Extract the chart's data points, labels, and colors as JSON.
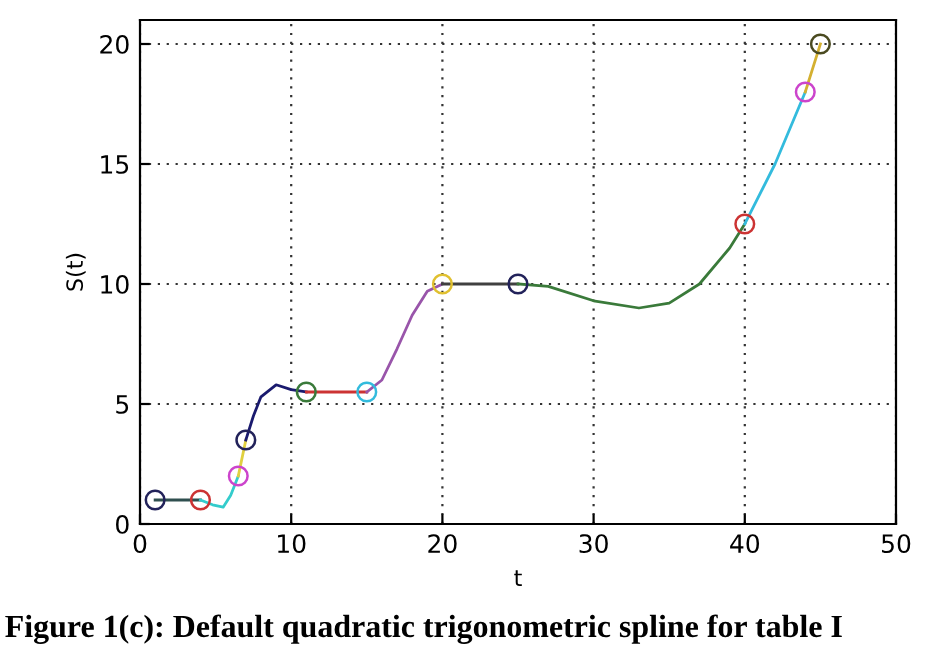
{
  "chart_data": {
    "type": "line",
    "title": "Figure 1(c): Default quadratic trigonometric spline for table I",
    "xlabel": "t",
    "ylabel": "S(t)",
    "xlim": [
      0,
      50
    ],
    "ylim": [
      0,
      21
    ],
    "xticks": [
      0,
      10,
      20,
      30,
      40,
      50
    ],
    "yticks": [
      0,
      5,
      10,
      15,
      20
    ],
    "grid": true,
    "line_style": "solid",
    "marker": "none",
    "series": [
      {
        "color": "#2f4f4f",
        "x": [
          1,
          4
        ],
        "values": [
          1,
          1
        ]
      },
      {
        "color": "#33cccc",
        "x": [
          4,
          4.8,
          5.5,
          6,
          6.5
        ],
        "values": [
          1,
          0.8,
          0.7,
          1.2,
          2
        ]
      },
      {
        "color": "#e0d040",
        "x": [
          6.5,
          7
        ],
        "values": [
          2,
          3.5
        ]
      },
      {
        "color": "#1a1a6e",
        "x": [
          7,
          7.5,
          8,
          9,
          10,
          11
        ],
        "values": [
          3.5,
          4.5,
          5.3,
          5.8,
          5.6,
          5.5
        ]
      },
      {
        "color": "#cc3333",
        "x": [
          11,
          15
        ],
        "values": [
          5.5,
          5.5
        ]
      },
      {
        "color": "#9955aa",
        "x": [
          15,
          16,
          17,
          18,
          19,
          20
        ],
        "values": [
          5.5,
          6,
          7.3,
          8.7,
          9.7,
          10
        ]
      },
      {
        "color": "#404040",
        "x": [
          20,
          25
        ],
        "values": [
          10,
          10
        ]
      },
      {
        "color": "#3a7a3a",
        "x": [
          25,
          27,
          30,
          33,
          35,
          37,
          39,
          40
        ],
        "values": [
          10,
          9.9,
          9.3,
          9,
          9.2,
          10,
          11.5,
          12.5
        ]
      },
      {
        "color": "#33bbdd",
        "x": [
          40,
          42,
          44
        ],
        "values": [
          12.5,
          15,
          18
        ]
      },
      {
        "color": "#d4b030",
        "x": [
          44,
          45
        ],
        "values": [
          18,
          20
        ]
      },
      {
        "type": "scatter",
        "marker": "circle",
        "x": [
          1,
          4,
          6.5,
          7,
          11,
          15,
          20,
          25,
          40,
          44,
          45
        ],
        "values": [
          1,
          1,
          2,
          3.5,
          5.5,
          5.5,
          10,
          10,
          12.5,
          18,
          20
        ],
        "colors": [
          "#22225a",
          "#cc3333",
          "#cc44cc",
          "#22225a",
          "#3a7a3a",
          "#33bbdd",
          "#e0c030",
          "#22225a",
          "#cc3333",
          "#cc44cc",
          "#4a4a20"
        ]
      }
    ]
  }
}
